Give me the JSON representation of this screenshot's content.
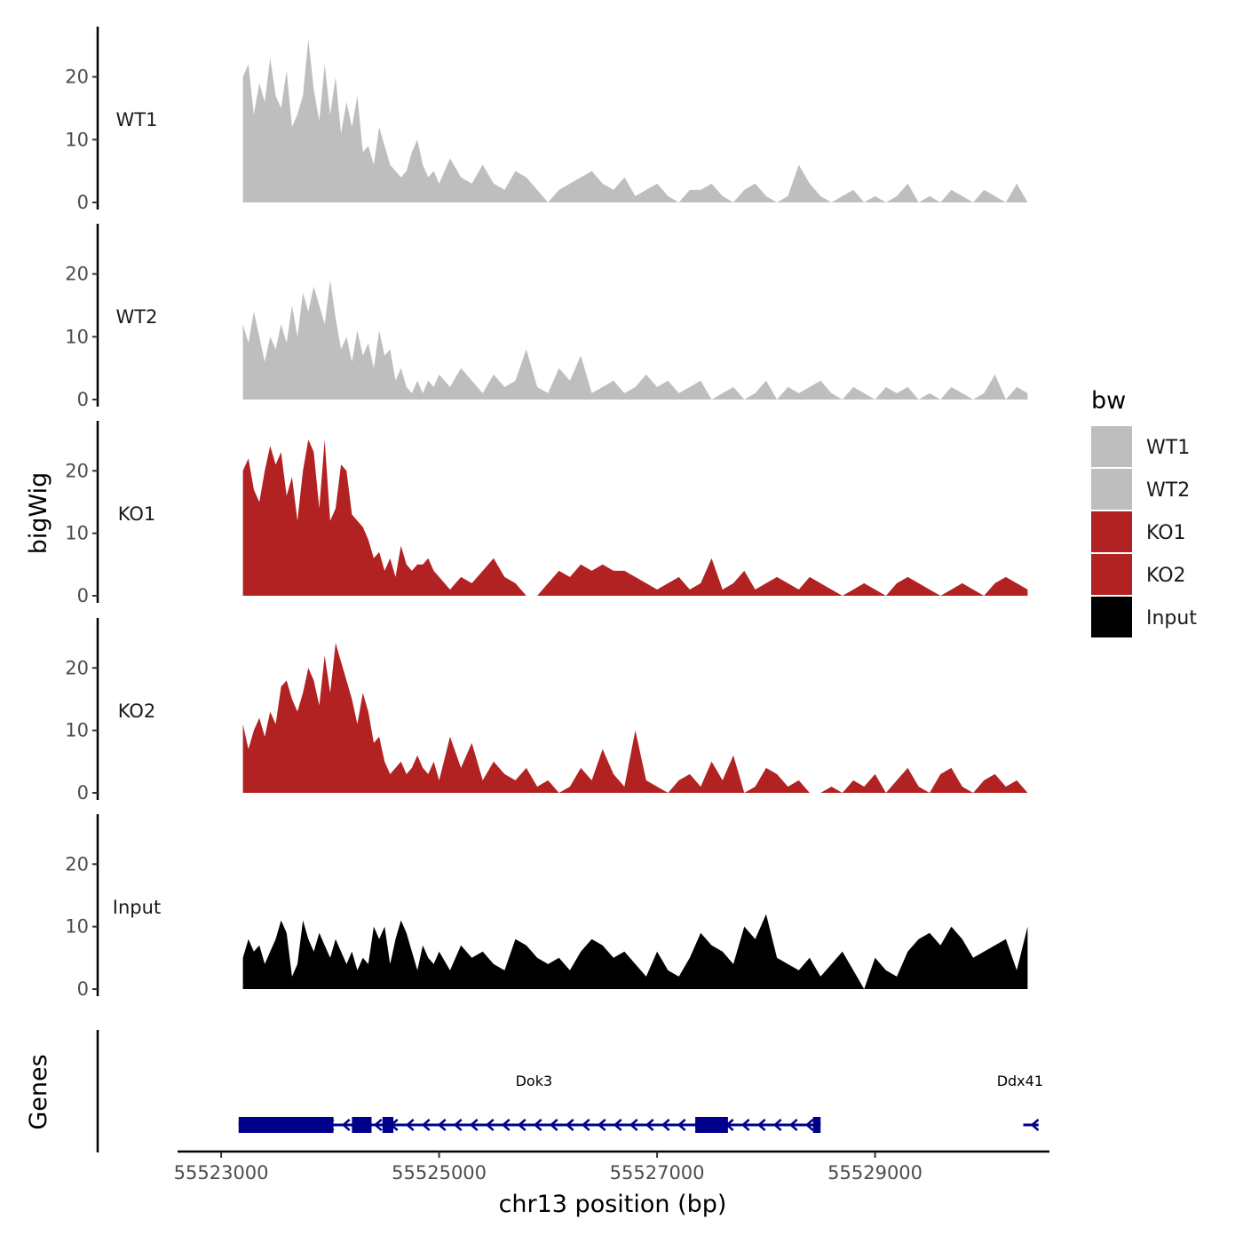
{
  "chart_data": {
    "type": "area",
    "title": "",
    "xlabel": "chr13 position (bp)",
    "ylabel": "bigWig",
    "gene_panel_label": "Genes",
    "xlim": [
      55522600,
      55530600
    ],
    "ylim": [
      0,
      28
    ],
    "x_ticks": [
      55523000,
      55525000,
      55527000,
      55529000
    ],
    "x_tick_labels": [
      "55523000",
      "55525000",
      "55527000",
      "55529000"
    ],
    "y_ticks": [
      0,
      10,
      20
    ],
    "y_tick_labels": [
      "0",
      "10",
      "20"
    ],
    "grid": false,
    "legend": {
      "title": "bw",
      "position": "right",
      "entries": [
        {
          "name": "WT1",
          "color": "#bebebe"
        },
        {
          "name": "WT2",
          "color": "#bebebe"
        },
        {
          "name": "KO1",
          "color": "#b22222"
        },
        {
          "name": "KO2",
          "color": "#b22222"
        },
        {
          "name": "Input",
          "color": "#000000"
        }
      ]
    },
    "series": [
      {
        "name": "WT1",
        "color": "#bebebe",
        "x": [
          55523200,
          55523250,
          55523300,
          55523350,
          55523400,
          55523450,
          55523500,
          55523550,
          55523600,
          55523650,
          55523700,
          55523750,
          55523800,
          55523850,
          55523900,
          55523950,
          55524000,
          55524050,
          55524100,
          55524150,
          55524200,
          55524250,
          55524300,
          55524350,
          55524400,
          55524450,
          55524500,
          55524550,
          55524600,
          55524650,
          55524700,
          55524750,
          55524800,
          55524850,
          55524900,
          55524950,
          55525000,
          55525100,
          55525200,
          55525300,
          55525400,
          55525500,
          55525600,
          55525700,
          55525800,
          55525900,
          55526000,
          55526100,
          55526200,
          55526300,
          55526400,
          55526500,
          55526600,
          55526700,
          55526800,
          55526900,
          55527000,
          55527100,
          55527200,
          55527300,
          55527400,
          55527500,
          55527600,
          55527700,
          55527800,
          55527900,
          55528000,
          55528100,
          55528200,
          55528300,
          55528400,
          55528500,
          55528600,
          55528700,
          55528800,
          55528900,
          55529000,
          55529100,
          55529200,
          55529300,
          55529400,
          55529500,
          55529600,
          55529700,
          55529800,
          55529900,
          55530000,
          55530100,
          55530200,
          55530300,
          55530400
        ],
        "values": [
          20,
          22,
          14,
          19,
          16,
          23,
          17,
          15,
          21,
          12,
          14,
          17,
          26,
          18,
          13,
          22,
          14,
          20,
          11,
          16,
          12,
          17,
          8,
          9,
          6,
          12,
          9,
          6,
          5,
          4,
          5,
          8,
          10,
          6,
          4,
          5,
          3,
          7,
          4,
          3,
          6,
          3,
          2,
          5,
          4,
          2,
          0,
          2,
          3,
          4,
          5,
          3,
          2,
          4,
          1,
          2,
          3,
          1,
          0,
          2,
          2,
          3,
          1,
          0,
          2,
          3,
          1,
          0,
          1,
          6,
          3,
          1,
          0,
          1,
          2,
          0,
          1,
          0,
          1,
          3,
          0,
          1,
          0,
          2,
          1,
          0,
          2,
          1,
          0,
          3,
          0
        ]
      },
      {
        "name": "WT2",
        "color": "#bebebe",
        "x": [
          55523200,
          55523250,
          55523300,
          55523350,
          55523400,
          55523450,
          55523500,
          55523550,
          55523600,
          55523650,
          55523700,
          55523750,
          55523800,
          55523850,
          55523900,
          55523950,
          55524000,
          55524050,
          55524100,
          55524150,
          55524200,
          55524250,
          55524300,
          55524350,
          55524400,
          55524450,
          55524500,
          55524550,
          55524600,
          55524650,
          55524700,
          55524750,
          55524800,
          55524850,
          55524900,
          55524950,
          55525000,
          55525100,
          55525200,
          55525300,
          55525400,
          55525500,
          55525600,
          55525700,
          55525800,
          55525900,
          55526000,
          55526100,
          55526200,
          55526300,
          55526400,
          55526500,
          55526600,
          55526700,
          55526800,
          55526900,
          55527000,
          55527100,
          55527200,
          55527300,
          55527400,
          55527500,
          55527600,
          55527700,
          55527800,
          55527900,
          55528000,
          55528100,
          55528200,
          55528300,
          55528400,
          55528500,
          55528600,
          55528700,
          55528800,
          55528900,
          55529000,
          55529100,
          55529200,
          55529300,
          55529400,
          55529500,
          55529600,
          55529700,
          55529800,
          55529900,
          55530000,
          55530100,
          55530200,
          55530300,
          55530400
        ],
        "values": [
          12,
          9,
          14,
          10,
          6,
          10,
          8,
          12,
          9,
          15,
          10,
          17,
          14,
          18,
          15,
          12,
          19,
          13,
          8,
          10,
          6,
          11,
          7,
          9,
          5,
          11,
          7,
          8,
          3,
          5,
          2,
          1,
          3,
          1,
          3,
          2,
          4,
          2,
          5,
          3,
          1,
          4,
          2,
          3,
          8,
          2,
          1,
          5,
          3,
          7,
          1,
          2,
          3,
          1,
          2,
          4,
          2,
          3,
          1,
          2,
          3,
          0,
          1,
          2,
          0,
          1,
          3,
          0,
          2,
          1,
          2,
          3,
          1,
          0,
          2,
          1,
          0,
          2,
          1,
          2,
          0,
          1,
          0,
          2,
          1,
          0,
          1,
          4,
          0,
          2,
          1
        ]
      },
      {
        "name": "KO1",
        "color": "#b22222",
        "x": [
          55523200,
          55523250,
          55523300,
          55523350,
          55523400,
          55523450,
          55523500,
          55523550,
          55523600,
          55523650,
          55523700,
          55523750,
          55523800,
          55523850,
          55523900,
          55523950,
          55524000,
          55524050,
          55524100,
          55524150,
          55524200,
          55524250,
          55524300,
          55524350,
          55524400,
          55524450,
          55524500,
          55524550,
          55524600,
          55524650,
          55524700,
          55524750,
          55524800,
          55524850,
          55524900,
          55524950,
          55525000,
          55525100,
          55525200,
          55525300,
          55525400,
          55525500,
          55525600,
          55525700,
          55525800,
          55525900,
          55526000,
          55526100,
          55526200,
          55526300,
          55526400,
          55526500,
          55526600,
          55526700,
          55526800,
          55526900,
          55527000,
          55527100,
          55527200,
          55527300,
          55527400,
          55527500,
          55527600,
          55527700,
          55527800,
          55527900,
          55528000,
          55528100,
          55528200,
          55528300,
          55528400,
          55528500,
          55528600,
          55528700,
          55528800,
          55528900,
          55529000,
          55529100,
          55529200,
          55529300,
          55529400,
          55529500,
          55529600,
          55529700,
          55529800,
          55529900,
          55530000,
          55530100,
          55530200,
          55530300,
          55530400
        ],
        "values": [
          20,
          22,
          17,
          15,
          20,
          24,
          21,
          23,
          16,
          19,
          12,
          20,
          25,
          23,
          14,
          25,
          12,
          14,
          21,
          20,
          13,
          12,
          11,
          9,
          6,
          7,
          4,
          6,
          3,
          8,
          5,
          4,
          5,
          5,
          6,
          4,
          3,
          1,
          3,
          2,
          4,
          6,
          3,
          2,
          0,
          0,
          2,
          4,
          3,
          5,
          4,
          5,
          4,
          4,
          3,
          2,
          1,
          2,
          3,
          1,
          2,
          6,
          1,
          2,
          4,
          1,
          2,
          3,
          2,
          1,
          3,
          2,
          1,
          0,
          1,
          2,
          1,
          0,
          2,
          3,
          2,
          1,
          0,
          1,
          2,
          1,
          0,
          2,
          3,
          2,
          1
        ]
      },
      {
        "name": "KO2",
        "color": "#b22222",
        "x": [
          55523200,
          55523250,
          55523300,
          55523350,
          55523400,
          55523450,
          55523500,
          55523550,
          55523600,
          55523650,
          55523700,
          55523750,
          55523800,
          55523850,
          55523900,
          55523950,
          55524000,
          55524050,
          55524100,
          55524150,
          55524200,
          55524250,
          55524300,
          55524350,
          55524400,
          55524450,
          55524500,
          55524550,
          55524600,
          55524650,
          55524700,
          55524750,
          55524800,
          55524850,
          55524900,
          55524950,
          55525000,
          55525100,
          55525200,
          55525300,
          55525400,
          55525500,
          55525600,
          55525700,
          55525800,
          55525900,
          55526000,
          55526100,
          55526200,
          55526300,
          55526400,
          55526500,
          55526600,
          55526700,
          55526800,
          55526900,
          55527000,
          55527100,
          55527200,
          55527300,
          55527400,
          55527500,
          55527600,
          55527700,
          55527800,
          55527900,
          55528000,
          55528100,
          55528200,
          55528300,
          55528400,
          55528500,
          55528600,
          55528700,
          55528800,
          55528900,
          55529000,
          55529100,
          55529200,
          55529300,
          55529400,
          55529500,
          55529600,
          55529700,
          55529800,
          55529900,
          55530000,
          55530100,
          55530200,
          55530300,
          55530400
        ],
        "values": [
          11,
          7,
          10,
          12,
          9,
          13,
          11,
          17,
          18,
          15,
          13,
          16,
          20,
          18,
          14,
          22,
          16,
          24,
          21,
          18,
          15,
          11,
          16,
          13,
          8,
          9,
          5,
          3,
          4,
          5,
          3,
          4,
          6,
          4,
          3,
          5,
          2,
          9,
          4,
          8,
          2,
          5,
          3,
          2,
          4,
          1,
          2,
          0,
          1,
          4,
          2,
          7,
          3,
          1,
          10,
          2,
          1,
          0,
          2,
          3,
          1,
          5,
          2,
          6,
          0,
          1,
          4,
          3,
          1,
          2,
          0,
          0,
          1,
          0,
          2,
          1,
          3,
          0,
          2,
          4,
          1,
          0,
          3,
          4,
          1,
          0,
          2,
          3,
          1,
          2,
          0
        ]
      },
      {
        "name": "Input",
        "color": "#000000",
        "x": [
          55523200,
          55523250,
          55523300,
          55523350,
          55523400,
          55523450,
          55523500,
          55523550,
          55523600,
          55523650,
          55523700,
          55523750,
          55523800,
          55523850,
          55523900,
          55523950,
          55524000,
          55524050,
          55524100,
          55524150,
          55524200,
          55524250,
          55524300,
          55524350,
          55524400,
          55524450,
          55524500,
          55524550,
          55524600,
          55524650,
          55524700,
          55524750,
          55524800,
          55524850,
          55524900,
          55524950,
          55525000,
          55525100,
          55525200,
          55525300,
          55525400,
          55525500,
          55525600,
          55525700,
          55525800,
          55525900,
          55526000,
          55526100,
          55526200,
          55526300,
          55526400,
          55526500,
          55526600,
          55526700,
          55526800,
          55526900,
          55527000,
          55527100,
          55527200,
          55527300,
          55527400,
          55527500,
          55527600,
          55527700,
          55527800,
          55527900,
          55528000,
          55528100,
          55528200,
          55528300,
          55528400,
          55528500,
          55528600,
          55528700,
          55528800,
          55528900,
          55529000,
          55529100,
          55529200,
          55529300,
          55529400,
          55529500,
          55529600,
          55529700,
          55529800,
          55529900,
          55530000,
          55530100,
          55530200,
          55530300,
          55530400
        ],
        "values": [
          5,
          8,
          6,
          7,
          4,
          6,
          8,
          11,
          9,
          2,
          4,
          11,
          8,
          6,
          9,
          7,
          5,
          8,
          6,
          4,
          6,
          3,
          5,
          4,
          10,
          8,
          10,
          4,
          8,
          11,
          9,
          6,
          3,
          7,
          5,
          4,
          6,
          3,
          7,
          5,
          6,
          4,
          3,
          8,
          7,
          5,
          4,
          5,
          3,
          6,
          8,
          7,
          5,
          6,
          4,
          2,
          6,
          3,
          2,
          5,
          9,
          7,
          6,
          4,
          10,
          8,
          12,
          5,
          4,
          3,
          5,
          2,
          4,
          6,
          3,
          0,
          5,
          3,
          2,
          6,
          8,
          9,
          7,
          10,
          8,
          5,
          6,
          7,
          8,
          3,
          10
        ]
      }
    ],
    "genes": [
      {
        "name": "Dok3",
        "strand": "-",
        "start": 55523160,
        "end": 55528500,
        "label_x": 55525870,
        "exons": [
          [
            55523160,
            55524030
          ],
          [
            55524200,
            55524380
          ],
          [
            55524480,
            55524580
          ],
          [
            55527350,
            55527650
          ],
          [
            55528430,
            55528500
          ]
        ]
      },
      {
        "name": "Ddx41",
        "strand": "-",
        "start": 55530360,
        "end": 55530500,
        "label_x": 55530330,
        "exons": []
      }
    ]
  }
}
